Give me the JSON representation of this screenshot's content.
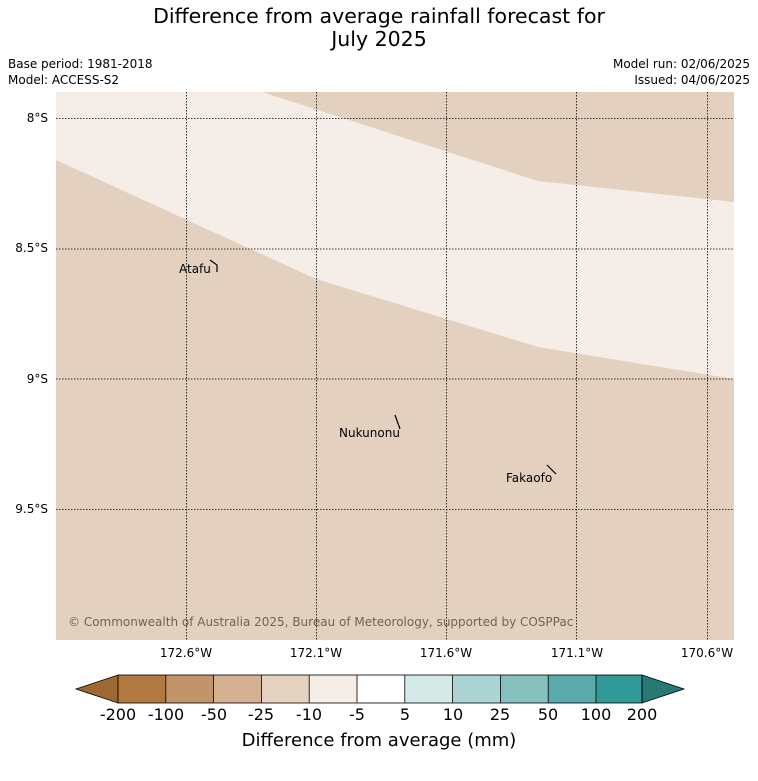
{
  "title_line1": "Difference from average rainfall forecast for",
  "title_line2": "July 2025",
  "meta_left": {
    "base_period": "Base period: 1981-2018",
    "model": "Model: ACCESS-S2"
  },
  "meta_right": {
    "model_run": "Model run: 02/06/2025",
    "issued": "Issued: 04/06/2025"
  },
  "map": {
    "latitude_labels": [
      "8°S",
      "8.5°S",
      "9°S",
      "9.5°S"
    ],
    "longitude_labels": [
      "172.6°W",
      "172.1°W",
      "171.6°W",
      "171.1°W",
      "170.6°W"
    ],
    "places": [
      "Atafu",
      "Nukunonu",
      "Fakaofo"
    ],
    "copyright": "© Commonwealth of Australia 2025, Bureau of Meteorology, supported by COSPPac",
    "region_colors": {
      "minus_25_to_minus_10": "#e3d0bf",
      "minus_10_to_minus_5": "#f5ede8"
    }
  },
  "colorbar": {
    "ticks": [
      "-200",
      "-100",
      "-50",
      "-25",
      "-10",
      "-5",
      "5",
      "10",
      "25",
      "50",
      "100",
      "200"
    ],
    "colors": [
      "#9f6731",
      "#b17840",
      "#c29469",
      "#d4b191",
      "#e6d2c1",
      "#f5ede8",
      "#ffffff",
      "#d4eae9",
      "#acd4d5",
      "#85c0bf",
      "#59aaaa",
      "#329999",
      "#277975"
    ],
    "label": "Difference from average (mm)"
  }
}
